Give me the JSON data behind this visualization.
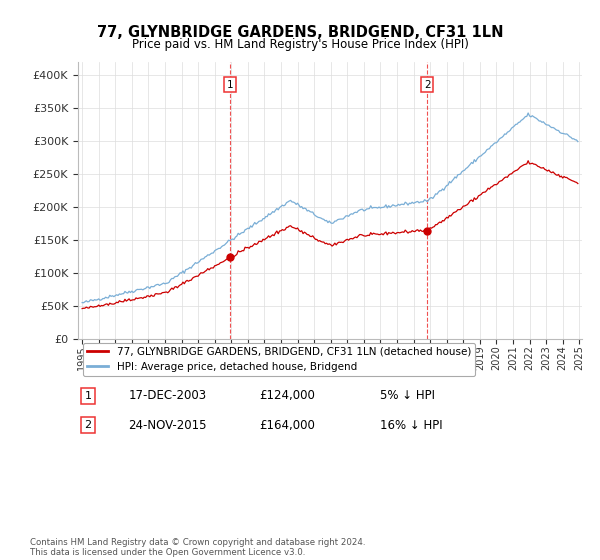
{
  "title": "77, GLYNBRIDGE GARDENS, BRIDGEND, CF31 1LN",
  "subtitle": "Price paid vs. HM Land Registry's House Price Index (HPI)",
  "ylim": [
    0,
    420000
  ],
  "yticks": [
    0,
    50000,
    100000,
    150000,
    200000,
    250000,
    300000,
    350000,
    400000
  ],
  "ytick_labels": [
    "£0",
    "£50K",
    "£100K",
    "£150K",
    "£200K",
    "£250K",
    "£300K",
    "£350K",
    "£400K"
  ],
  "red_line_color": "#cc0000",
  "blue_line_color": "#7aaed6",
  "vline_color": "#ee3333",
  "transaction1": {
    "date": "17-DEC-2003",
    "price": "£124,000",
    "pct": "5% ↓ HPI"
  },
  "transaction2": {
    "date": "24-NOV-2015",
    "price": "£164,000",
    "pct": "16% ↓ HPI"
  },
  "legend_line1": "77, GLYNBRIDGE GARDENS, BRIDGEND, CF31 1LN (detached house)",
  "legend_line2": "HPI: Average price, detached house, Bridgend",
  "footnote": "Contains HM Land Registry data © Crown copyright and database right 2024.\nThis data is licensed under the Open Government Licence v3.0.",
  "background_color": "#ffffff",
  "grid_color": "#dddddd"
}
